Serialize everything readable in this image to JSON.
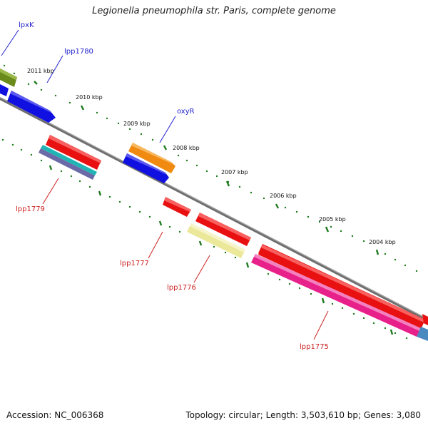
{
  "title": "Legionella pneumophila str. Paris, complete genome",
  "footer": {
    "accession": "Accession: NC_006368",
    "topology": "Topology: circular; Length: 3,503,610 bp; Genes: 3,080"
  },
  "colors": {
    "backbone": "#808080",
    "tick": "#1f7a1f",
    "forward_label": "#2222cc",
    "reverse_label": "#cc2222",
    "feature_red": "#e81010",
    "feature_blue": "#1010e0",
    "feature_orange": "#f08a10",
    "feature_green": "#6a8a1c",
    "feature_pink": "#e8208a",
    "feature_cyan": "#20b4b4",
    "feature_yellow": "#ece89a",
    "feature_steelblue": "#4a88c0"
  },
  "scale_labels": [
    "2011 kbp",
    "2010 kbp",
    "2009 kbp",
    "2008 kbp",
    "2007 kbp",
    "2006 kbp",
    "2005 kbp",
    "2004 kbp"
  ],
  "gene_labels": {
    "forward": [
      "lpxK",
      "lpp1780",
      "oxyR"
    ],
    "reverse": [
      "lpp1779",
      "lpp1777",
      "lpp1776",
      "lpp1775"
    ]
  }
}
